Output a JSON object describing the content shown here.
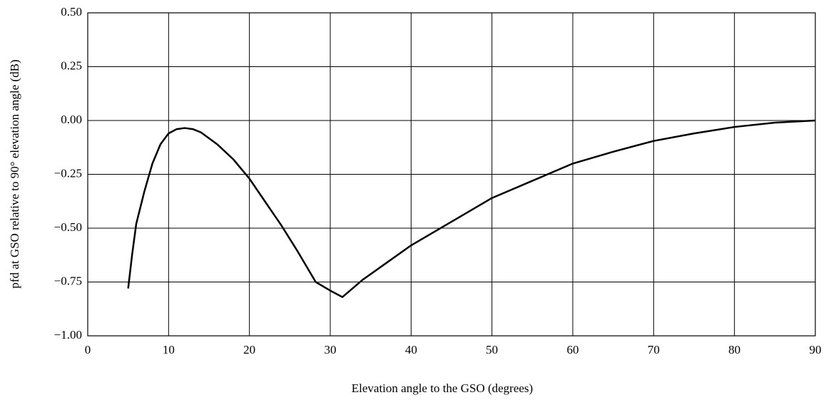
{
  "chart_data": {
    "type": "line",
    "x_label": "Elevation angle to the GSO (degrees)",
    "y_label": "pfd at GSO relative to 90° elevation angle (dB)",
    "x": [
      5,
      5.5,
      6,
      7,
      8,
      9,
      10,
      11,
      12,
      13,
      14,
      16,
      18,
      20,
      22,
      24,
      26,
      28.2,
      30,
      31.5,
      34,
      37,
      40,
      45,
      50,
      55,
      60,
      65,
      70,
      75,
      80,
      85,
      90
    ],
    "series": [
      {
        "color": "#000000",
        "values": [
          -0.78,
          -0.62,
          -0.48,
          -0.33,
          -0.2,
          -0.11,
          -0.06,
          -0.04,
          -0.035,
          -0.04,
          -0.055,
          -0.11,
          -0.18,
          -0.27,
          -0.38,
          -0.49,
          -0.61,
          -0.75,
          -0.79,
          -0.82,
          -0.74,
          -0.66,
          -0.58,
          -0.47,
          -0.36,
          -0.28,
          -0.2,
          -0.145,
          -0.095,
          -0.06,
          -0.03,
          -0.01,
          0
        ]
      }
    ],
    "xlim": [
      0,
      90
    ],
    "xticks": [
      0,
      10,
      20,
      30,
      40,
      50,
      60,
      70,
      80,
      90
    ],
    "ylim": [
      -1,
      0.5
    ],
    "yticks": [
      {
        "value": 0.5,
        "label": "0.50"
      },
      {
        "value": 0.25,
        "label": "0.25"
      },
      {
        "value": 0,
        "label": "0.00"
      },
      {
        "value": -0.25,
        "label": "−0.25"
      },
      {
        "value": -0.5,
        "label": "−0.50"
      },
      {
        "value": -0.75,
        "label": "−0.75"
      },
      {
        "value": -1,
        "label": "−1.00"
      }
    ],
    "grid": true
  }
}
